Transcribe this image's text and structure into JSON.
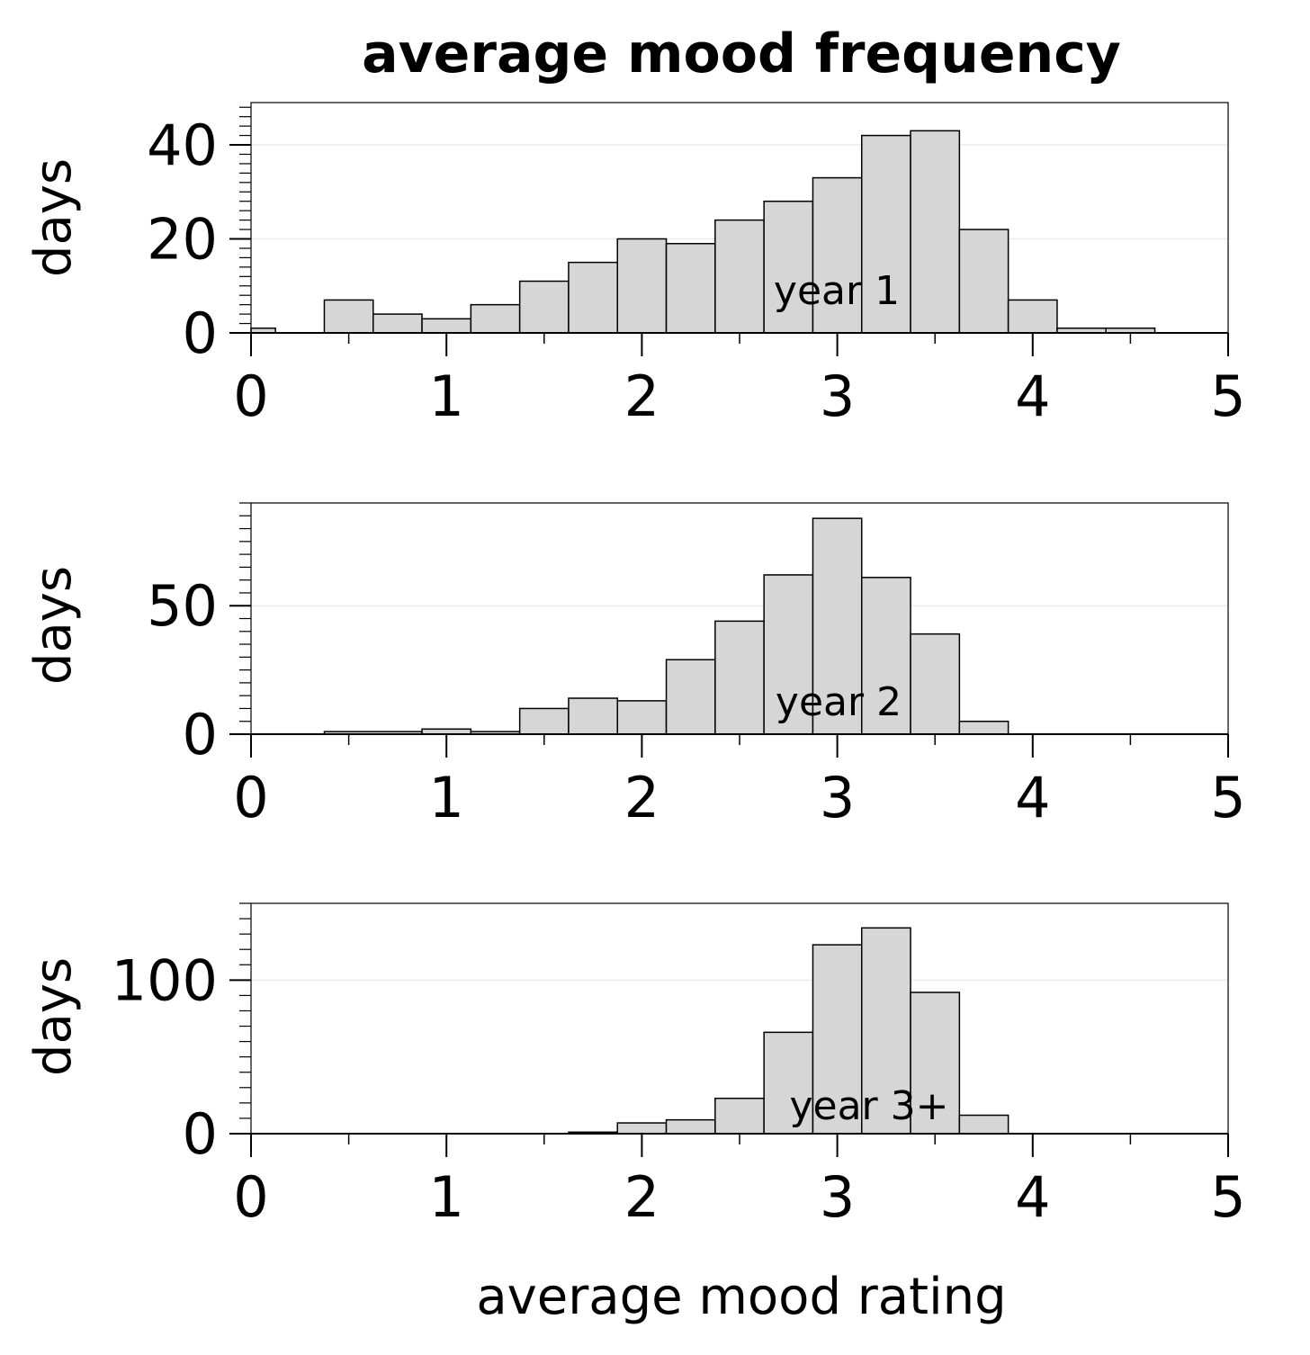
{
  "chart_data": {
    "type": "histogram",
    "title": "average mood frequency",
    "xlabel": "average mood rating",
    "bin_width": 0.25,
    "panels": [
      {
        "label": "year 1",
        "ylabel": "days",
        "xlim": [
          0,
          5
        ],
        "ylim": [
          0,
          49
        ],
        "xticks": [
          "0",
          "1",
          "2",
          "3",
          "4",
          "5"
        ],
        "yticks": [
          0,
          20,
          40
        ],
        "ytick_labels": [
          "0",
          "20",
          "40"
        ],
        "grid_y": [
          20,
          40
        ],
        "bins": [
          {
            "x": [
              0.0,
              0.125
            ],
            "y": 1
          },
          {
            "x": [
              0.375,
              0.625
            ],
            "y": 7
          },
          {
            "x": [
              0.625,
              0.875
            ],
            "y": 4
          },
          {
            "x": [
              0.875,
              1.125
            ],
            "y": 3
          },
          {
            "x": [
              1.125,
              1.375
            ],
            "y": 6
          },
          {
            "x": [
              1.375,
              1.625
            ],
            "y": 11
          },
          {
            "x": [
              1.625,
              1.875
            ],
            "y": 15
          },
          {
            "x": [
              1.875,
              2.125
            ],
            "y": 20
          },
          {
            "x": [
              2.125,
              2.375
            ],
            "y": 19
          },
          {
            "x": [
              2.375,
              2.625
            ],
            "y": 24
          },
          {
            "x": [
              2.625,
              2.875
            ],
            "y": 28
          },
          {
            "x": [
              2.875,
              3.125
            ],
            "y": 33
          },
          {
            "x": [
              3.125,
              3.375
            ],
            "y": 42
          },
          {
            "x": [
              3.375,
              3.625
            ],
            "y": 43
          },
          {
            "x": [
              3.625,
              3.875
            ],
            "y": 22
          },
          {
            "x": [
              3.875,
              4.125
            ],
            "y": 7
          },
          {
            "x": [
              4.125,
              4.375
            ],
            "y": 1
          },
          {
            "x": [
              4.375,
              4.625
            ],
            "y": 1
          }
        ]
      },
      {
        "label": "year 2",
        "ylabel": "days",
        "xlim": [
          0,
          5
        ],
        "ylim": [
          0,
          90
        ],
        "xticks": [
          "0",
          "1",
          "2",
          "3",
          "4",
          "5"
        ],
        "yticks": [
          0,
          50
        ],
        "ytick_labels": [
          "0",
          "50"
        ],
        "grid_y": [
          50
        ],
        "bins": [
          {
            "x": [
              0.375,
              0.875
            ],
            "y": 1
          },
          {
            "x": [
              0.875,
              1.125
            ],
            "y": 2
          },
          {
            "x": [
              1.125,
              1.375
            ],
            "y": 1
          },
          {
            "x": [
              1.375,
              1.625
            ],
            "y": 10
          },
          {
            "x": [
              1.625,
              1.875
            ],
            "y": 14
          },
          {
            "x": [
              1.875,
              2.125
            ],
            "y": 13
          },
          {
            "x": [
              2.125,
              2.375
            ],
            "y": 29
          },
          {
            "x": [
              2.375,
              2.625
            ],
            "y": 44
          },
          {
            "x": [
              2.625,
              2.875
            ],
            "y": 62
          },
          {
            "x": [
              2.875,
              3.125
            ],
            "y": 84
          },
          {
            "x": [
              3.125,
              3.375
            ],
            "y": 61
          },
          {
            "x": [
              3.375,
              3.625
            ],
            "y": 39
          },
          {
            "x": [
              3.625,
              3.875
            ],
            "y": 5
          }
        ]
      },
      {
        "label": "year 3+",
        "ylabel": "days",
        "xlim": [
          0,
          5
        ],
        "ylim": [
          0,
          150
        ],
        "xticks": [
          "0",
          "1",
          "2",
          "3",
          "4",
          "5"
        ],
        "yticks": [
          0,
          100
        ],
        "ytick_labels": [
          "0",
          "100"
        ],
        "grid_y": [
          100
        ],
        "bins": [
          {
            "x": [
              1.625,
              1.875
            ],
            "y": 1
          },
          {
            "x": [
              1.875,
              2.125
            ],
            "y": 7
          },
          {
            "x": [
              2.125,
              2.375
            ],
            "y": 9
          },
          {
            "x": [
              2.375,
              2.625
            ],
            "y": 23
          },
          {
            "x": [
              2.625,
              2.875
            ],
            "y": 66
          },
          {
            "x": [
              2.875,
              3.125
            ],
            "y": 123
          },
          {
            "x": [
              3.125,
              3.375
            ],
            "y": 134
          },
          {
            "x": [
              3.375,
              3.625
            ],
            "y": 92
          },
          {
            "x": [
              3.625,
              3.875
            ],
            "y": 12
          }
        ]
      }
    ],
    "colors": {
      "bar_fill": "#d6d6d6",
      "bar_stroke": "#000000",
      "grid": "#ececec",
      "axis": "#000000"
    }
  }
}
